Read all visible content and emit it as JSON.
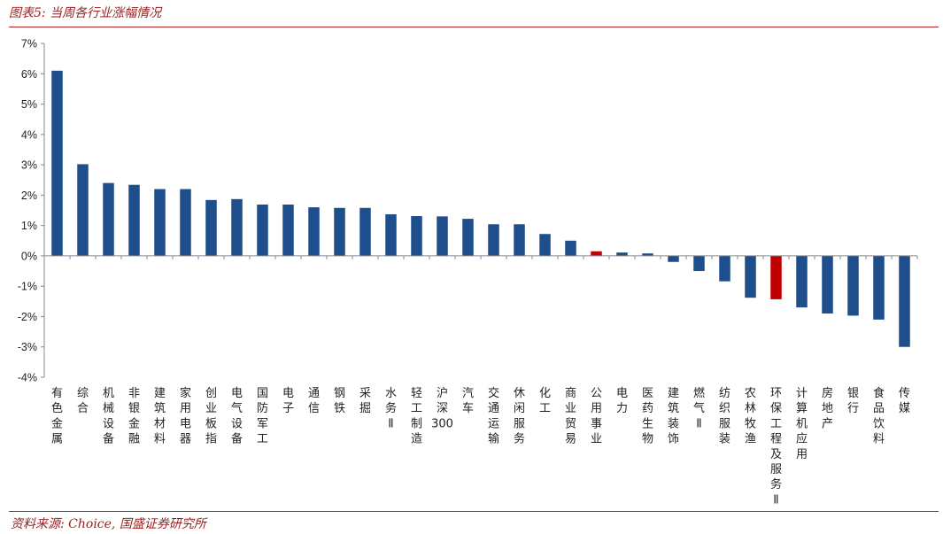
{
  "header": {
    "title": "图表5:  当周各行业涨幅情况"
  },
  "footer": {
    "source": "资料来源:  Choice,  国盛证券研究所"
  },
  "colors": {
    "bar": "#1f4e8c",
    "highlight": "#c00000",
    "accent": "#b22222"
  },
  "chart_data": {
    "type": "bar",
    "title": "",
    "xlabel": "",
    "ylabel": "",
    "ylim": [
      -4,
      7
    ],
    "yticks": [
      7,
      6,
      5,
      4,
      3,
      2,
      1,
      0,
      -1,
      -2,
      -3,
      -4
    ],
    "ytick_labels": [
      "7%",
      "6%",
      "5%",
      "4%",
      "3%",
      "2%",
      "1%",
      "0%",
      "-1%",
      "-2%",
      "-3%",
      "-4%"
    ],
    "grid": false,
    "highlight_categories": [
      "公用事业",
      "环保工程及服务Ⅱ"
    ],
    "categories": [
      "有色金属",
      "综合",
      "机械设备",
      "非银金融",
      "建筑材料",
      "家用电器",
      "创业板指",
      "电气设备",
      "国防军工",
      "电子",
      "通信",
      "钢铁",
      "采掘",
      "水务Ⅱ",
      "轻工制造",
      "沪深300",
      "汽车",
      "交通运输",
      "休闲服务",
      "化工",
      "商业贸易",
      "公用事业",
      "电力",
      "医药生物",
      "建筑装饰",
      "燃气Ⅱ",
      "纺织服装",
      "农林牧渔",
      "环保工程及服务Ⅱ",
      "计算机应用",
      "房地产",
      "银行",
      "食品饮料",
      "传媒"
    ],
    "values": [
      6.1,
      3.02,
      2.4,
      2.34,
      2.2,
      2.2,
      1.84,
      1.87,
      1.69,
      1.69,
      1.6,
      1.58,
      1.58,
      1.37,
      1.31,
      1.3,
      1.22,
      1.04,
      1.04,
      0.72,
      0.5,
      0.15,
      0.11,
      0.08,
      -0.2,
      -0.5,
      -0.84,
      -1.38,
      -1.43,
      -1.7,
      -1.9,
      -1.97,
      -2.1,
      -3.0
    ]
  }
}
